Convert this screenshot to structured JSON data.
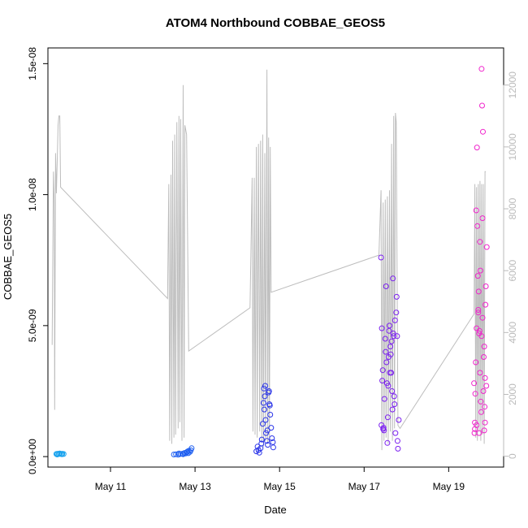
{
  "chart_data": {
    "type": "scatter",
    "title": "ATOM4 Northbound COBBAE_GEOS5",
    "xlabel": "Date",
    "ylabel": "COBBAE_GEOS5",
    "x_ticks": [
      "May 11",
      "May 13",
      "May 15",
      "May 17",
      "May 19"
    ],
    "x_tick_values": [
      11,
      13,
      15,
      17,
      19
    ],
    "xlim": [
      9.52,
      20.3
    ],
    "ylim": [
      -4e-10,
      1.56e-08
    ],
    "y_ticks": [
      "0.0e+00",
      "5.0e-09",
      "1.0e-08",
      "1.5e-08"
    ],
    "y_tick_values": [
      0,
      5e-09,
      1e-08,
      1.5e-08
    ],
    "y2_ticks": [
      "0",
      "2000",
      "4000",
      "6000",
      "8000",
      "10000",
      "12000"
    ],
    "y2_tick_values": [
      0,
      2000,
      4000,
      6000,
      8000,
      10000,
      12000
    ],
    "y2lim": [
      -350,
      13200
    ],
    "grid": false,
    "legend": "none",
    "colors": {
      "flight1": "#1aa3ee",
      "flight2": "#1f5ff0",
      "flight3": "#2a34e8",
      "flight4": "#7b1ff0",
      "flight5": "#f024cc",
      "altitude_line": "#bdbdbd",
      "axis": "#000000",
      "right_axis": "#bbbbbb"
    },
    "series": [
      {
        "marker": "circle",
        "color_key": "flight1",
        "points": [
          [
            9.72,
            1e-10
          ],
          [
            9.75,
            1.1e-10
          ],
          [
            9.78,
            1e-10
          ],
          [
            9.8,
            1.2e-10
          ],
          [
            9.83,
            1e-10
          ],
          [
            9.86,
            1.1e-10
          ],
          [
            9.89,
            1e-10
          ],
          [
            9.74,
            8e-11
          ],
          [
            9.85,
            9e-11
          ]
        ]
      },
      {
        "marker": "circle",
        "color_key": "flight2",
        "points": [
          [
            12.5,
            8e-11
          ],
          [
            12.55,
            9e-11
          ],
          [
            12.6,
            7e-11
          ],
          [
            12.65,
            1e-10
          ],
          [
            12.7,
            1.1e-10
          ],
          [
            12.75,
            1.4e-10
          ],
          [
            12.78,
            1.2e-10
          ],
          [
            12.8,
            1.6e-10
          ],
          [
            12.82,
            1.9e-10
          ],
          [
            12.85,
            2.2e-10
          ],
          [
            12.88,
            1.8e-10
          ],
          [
            12.9,
            2.4e-10
          ],
          [
            12.92,
            3.2e-10
          ],
          [
            12.72,
            9e-11
          ],
          [
            12.84,
            1.3e-10
          ],
          [
            12.62,
            1.2e-10
          ]
        ]
      },
      {
        "marker": "circle",
        "color_key": "flight3",
        "points": [
          [
            14.45,
            2e-10
          ],
          [
            14.48,
            3.8e-10
          ],
          [
            14.5,
            2.5e-10
          ],
          [
            14.52,
            1.5e-10
          ],
          [
            14.55,
            3.2e-10
          ],
          [
            14.57,
            5e-10
          ],
          [
            14.6,
            1.25e-09
          ],
          [
            14.62,
            2.05e-09
          ],
          [
            14.63,
            2.6e-09
          ],
          [
            14.65,
            2.3e-09
          ],
          [
            14.67,
            1.4e-09
          ],
          [
            14.68,
            9e-10
          ],
          [
            14.7,
            6e-10
          ],
          [
            14.72,
            4.5e-10
          ],
          [
            14.75,
            2.5e-09
          ],
          [
            14.77,
            1.95e-09
          ],
          [
            14.78,
            1.6e-09
          ],
          [
            14.8,
            1.1e-09
          ],
          [
            14.82,
            7e-10
          ],
          [
            14.84,
            5.5e-10
          ],
          [
            14.85,
            3.5e-10
          ],
          [
            14.64,
            1.8e-09
          ],
          [
            14.66,
            2.7e-09
          ],
          [
            14.71,
            1e-09
          ],
          [
            14.76,
            2e-09
          ],
          [
            14.58,
            6.5e-10
          ],
          [
            14.74,
            2.45e-09
          ]
        ]
      },
      {
        "marker": "circle",
        "color_key": "flight4",
        "points": [
          [
            17.4,
            7.6e-09
          ],
          [
            17.42,
            4.9e-09
          ],
          [
            17.44,
            3.3e-09
          ],
          [
            17.46,
            1.1e-09
          ],
          [
            17.48,
            2.2e-09
          ],
          [
            17.5,
            4.5e-09
          ],
          [
            17.52,
            6.5e-09
          ],
          [
            17.54,
            2.8e-09
          ],
          [
            17.56,
            1.5e-09
          ],
          [
            17.58,
            3.8e-09
          ],
          [
            17.6,
            5e-09
          ],
          [
            17.62,
            4.2e-09
          ],
          [
            17.64,
            3.2e-09
          ],
          [
            17.66,
            2.5e-09
          ],
          [
            17.68,
            6.8e-09
          ],
          [
            17.7,
            4.6e-09
          ],
          [
            17.72,
            2e-09
          ],
          [
            17.74,
            9e-10
          ],
          [
            17.76,
            5.5e-09
          ],
          [
            17.78,
            4.6e-09
          ],
          [
            17.8,
            3e-10
          ],
          [
            17.82,
            1.4e-09
          ],
          [
            17.43,
            2.9e-09
          ],
          [
            17.47,
            1e-09
          ],
          [
            17.53,
            3.6e-09
          ],
          [
            17.59,
            4.8e-09
          ],
          [
            17.65,
            4.4e-09
          ],
          [
            17.71,
            2.3e-09
          ],
          [
            17.77,
            6.1e-09
          ],
          [
            17.41,
            1.2e-09
          ],
          [
            17.51,
            4e-09
          ],
          [
            17.67,
            1.8e-09
          ],
          [
            17.73,
            5.2e-09
          ],
          [
            17.79,
            6e-10
          ],
          [
            17.55,
            5.2e-10
          ],
          [
            17.61,
            3.2e-09
          ],
          [
            17.69,
            4.7e-09
          ],
          [
            17.45,
            1.05e-09
          ],
          [
            17.57,
            2.7e-09
          ],
          [
            17.63,
            3.9e-09
          ]
        ]
      },
      {
        "marker": "circle",
        "color_key": "flight5",
        "points": [
          [
            19.6,
            2.8e-09
          ],
          [
            19.62,
            1.3e-09
          ],
          [
            19.64,
            3.6e-09
          ],
          [
            19.66,
            1.2e-09
          ],
          [
            19.68,
            8.8e-09
          ],
          [
            19.7,
            5.5e-09
          ],
          [
            19.72,
            4.7e-09
          ],
          [
            19.74,
            3.2e-09
          ],
          [
            19.76,
            2.1e-09
          ],
          [
            19.78,
            1.48e-08
          ],
          [
            19.8,
            5.3e-09
          ],
          [
            19.82,
            2.5e-09
          ],
          [
            19.84,
            4.2e-09
          ],
          [
            19.86,
            3e-09
          ],
          [
            19.88,
            6.5e-09
          ],
          [
            19.9,
            8e-09
          ],
          [
            19.65,
            9.4e-09
          ],
          [
            19.71,
            6.3e-09
          ],
          [
            19.75,
            7.1e-09
          ],
          [
            19.79,
            1.34e-08
          ],
          [
            19.81,
            1.24e-08
          ],
          [
            19.67,
            1.18e-08
          ],
          [
            19.73,
            4.8e-09
          ],
          [
            19.77,
            1.7e-09
          ],
          [
            19.83,
            3.8e-09
          ],
          [
            19.85,
            1.9e-09
          ],
          [
            19.61,
            9e-10
          ],
          [
            19.63,
            2.4e-09
          ],
          [
            19.69,
            6.9e-09
          ],
          [
            19.87,
            5.8e-09
          ],
          [
            19.89,
            2.7e-09
          ],
          [
            19.66,
            4.9e-09
          ],
          [
            19.72,
            9e-10
          ],
          [
            19.78,
            4.6e-09
          ],
          [
            19.84,
            1e-09
          ],
          [
            19.74,
            8.2e-09
          ],
          [
            19.8,
            9.1e-09
          ],
          [
            19.62,
            1.05e-09
          ],
          [
            19.7,
            5.6e-09
          ],
          [
            19.86,
            1.3e-09
          ]
        ]
      }
    ],
    "altitude_line": {
      "axis": "right",
      "points": [
        [
          9.62,
          3600
        ],
        [
          9.65,
          9200
        ],
        [
          9.67,
          8200
        ],
        [
          9.68,
          1500
        ],
        [
          9.7,
          9800
        ],
        [
          9.72,
          8500
        ],
        [
          9.74,
          9500
        ],
        [
          9.76,
          10700
        ],
        [
          9.78,
          11000
        ],
        [
          9.8,
          11000
        ],
        [
          9.82,
          8700
        ],
        [
          12.35,
          5100
        ],
        [
          12.38,
          8800
        ],
        [
          12.4,
          500
        ],
        [
          12.43,
          9100
        ],
        [
          12.45,
          400
        ],
        [
          12.47,
          10200
        ],
        [
          12.5,
          600
        ],
        [
          12.52,
          10400
        ],
        [
          12.54,
          700
        ],
        [
          12.57,
          10800
        ],
        [
          12.6,
          900
        ],
        [
          12.62,
          11000
        ],
        [
          12.64,
          1100
        ],
        [
          12.66,
          10900
        ],
        [
          12.69,
          500
        ],
        [
          12.72,
          12000
        ],
        [
          12.74,
          600
        ],
        [
          12.76,
          10700
        ],
        [
          12.8,
          10400
        ],
        [
          12.85,
          3400
        ],
        [
          14.3,
          4800
        ],
        [
          14.35,
          9000
        ],
        [
          14.37,
          800
        ],
        [
          14.4,
          9000
        ],
        [
          14.42,
          700
        ],
        [
          14.45,
          10000
        ],
        [
          14.47,
          600
        ],
        [
          14.5,
          10100
        ],
        [
          14.53,
          800
        ],
        [
          14.55,
          10200
        ],
        [
          14.58,
          500
        ],
        [
          14.6,
          10400
        ],
        [
          14.62,
          300
        ],
        [
          14.65,
          9800
        ],
        [
          14.67,
          500
        ],
        [
          14.7,
          12500
        ],
        [
          14.72,
          400
        ],
        [
          14.74,
          10300
        ],
        [
          14.76,
          500
        ],
        [
          14.78,
          10000
        ],
        [
          14.8,
          5300
        ],
        [
          17.35,
          6500
        ],
        [
          17.4,
          8600
        ],
        [
          17.42,
          200
        ],
        [
          17.45,
          8200
        ],
        [
          17.47,
          500
        ],
        [
          17.5,
          8300
        ],
        [
          17.52,
          600
        ],
        [
          17.55,
          8400
        ],
        [
          17.57,
          400
        ],
        [
          17.6,
          8600
        ],
        [
          17.62,
          800
        ],
        [
          17.65,
          10100
        ],
        [
          17.67,
          500
        ],
        [
          17.7,
          11000
        ],
        [
          17.72,
          900
        ],
        [
          17.74,
          11100
        ],
        [
          17.76,
          10800
        ],
        [
          17.8,
          1000
        ],
        [
          17.85,
          900
        ],
        [
          19.6,
          4600
        ],
        [
          19.62,
          8800
        ],
        [
          19.64,
          600
        ],
        [
          19.66,
          8700
        ],
        [
          19.68,
          500
        ],
        [
          19.7,
          8800
        ],
        [
          19.72,
          800
        ],
        [
          19.74,
          8900
        ],
        [
          19.76,
          500
        ],
        [
          19.78,
          8800
        ],
        [
          19.8,
          700
        ],
        [
          19.82,
          8800
        ],
        [
          19.84,
          400
        ],
        [
          19.86,
          9200
        ],
        [
          19.88,
          9200
        ]
      ]
    }
  }
}
